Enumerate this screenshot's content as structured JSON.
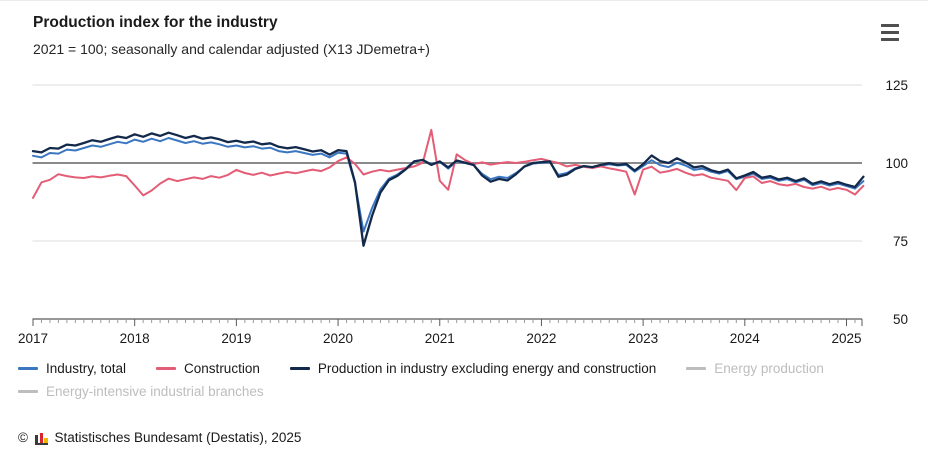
{
  "header": {
    "menu_icon": "hamburger-menu-icon"
  },
  "colors": {
    "industry_total": "#3b77c0",
    "construction": "#e35d76",
    "industry_excl": "#13294b",
    "disabled_legend": "#bdbdbd",
    "reference_line": "#8a8a8a",
    "gridline": "#dedede",
    "axis": "#5a5a5a",
    "minor_tick": "#9a9a9a",
    "text": "#1a1a1a",
    "logo_dark": "#3a3a3a",
    "logo_red": "#d9232e",
    "logo_yellow": "#f2b700"
  },
  "chart_data": {
    "type": "line",
    "title": "Production index for the industry",
    "subtitle": "2021 = 100; seasonally and calendar adjusted (X13 JDemetra+)",
    "x_start": "2017-01",
    "x_end": "2025-03",
    "x_frequency": "monthly",
    "x_tick_labels": [
      "2017",
      "2018",
      "2019",
      "2020",
      "2021",
      "2022",
      "2023",
      "2024",
      "2025"
    ],
    "y_ticks": [
      50,
      75,
      100,
      125
    ],
    "ylim": [
      50,
      127
    ],
    "reference_line": 100,
    "grid": "horizontal",
    "legend_position": "bottom",
    "series": [
      {
        "name": "Industry, total",
        "color": "#3b77c0",
        "disabled": false,
        "values": [
          102.3,
          101.8,
          103.2,
          103.0,
          104.3,
          104.0,
          104.8,
          105.6,
          105.2,
          106.0,
          106.8,
          106.3,
          107.5,
          106.8,
          107.8,
          107.0,
          108.0,
          107.2,
          106.4,
          107.0,
          106.2,
          106.6,
          106.0,
          105.2,
          105.6,
          105.0,
          105.4,
          104.6,
          104.9,
          103.8,
          103.4,
          103.8,
          103.2,
          102.6,
          103.0,
          101.8,
          103.3,
          103.0,
          93.5,
          78.0,
          85.5,
          91.5,
          95.0,
          96.3,
          98.3,
          100.6,
          100.9,
          99.6,
          100.4,
          98.2,
          100.6,
          100.0,
          99.3,
          96.5,
          94.8,
          95.6,
          95.2,
          96.8,
          98.8,
          99.8,
          100.1,
          100.3,
          96.2,
          96.8,
          98.3,
          99.0,
          98.6,
          99.2,
          99.6,
          99.2,
          99.4,
          97.2,
          99.0,
          100.9,
          99.3,
          98.7,
          100.1,
          99.2,
          97.8,
          98.2,
          97.2,
          96.6,
          97.4,
          94.8,
          95.6,
          96.6,
          94.9,
          95.3,
          94.3,
          94.8,
          93.8,
          94.6,
          92.9,
          93.6,
          92.8,
          93.4,
          92.6,
          91.8,
          94.2
        ]
      },
      {
        "name": "Construction",
        "color": "#e35d76",
        "disabled": false,
        "values": [
          88.8,
          93.8,
          94.6,
          96.4,
          95.8,
          95.4,
          95.2,
          95.7,
          95.4,
          95.9,
          96.3,
          95.8,
          92.8,
          89.6,
          91.2,
          93.4,
          95.0,
          94.2,
          94.8,
          95.4,
          94.9,
          95.8,
          95.3,
          96.2,
          97.8,
          96.8,
          96.2,
          96.9,
          96.0,
          96.6,
          97.1,
          96.7,
          97.3,
          97.9,
          97.4,
          98.6,
          100.6,
          101.8,
          99.7,
          96.3,
          97.2,
          97.8,
          97.3,
          97.9,
          98.4,
          98.9,
          100.1,
          110.6,
          94.3,
          91.4,
          102.8,
          100.9,
          99.6,
          100.2,
          99.5,
          99.9,
          100.3,
          100.0,
          100.4,
          100.9,
          101.3,
          100.6,
          100.0,
          98.9,
          99.4,
          98.8,
          98.4,
          98.9,
          98.3,
          97.8,
          97.2,
          89.9,
          97.9,
          98.8,
          96.9,
          97.4,
          98.1,
          96.9,
          96.0,
          96.4,
          95.3,
          94.8,
          94.3,
          91.3,
          95.2,
          95.7,
          93.6,
          94.2,
          93.2,
          92.8,
          93.3,
          92.3,
          91.8,
          92.4,
          91.4,
          92.0,
          91.4,
          89.9,
          92.7
        ]
      },
      {
        "name": "Production in industry excluding energy and construction",
        "color": "#13294b",
        "disabled": false,
        "values": [
          103.8,
          103.4,
          104.8,
          104.6,
          105.9,
          105.6,
          106.4,
          107.3,
          106.8,
          107.7,
          108.5,
          108.0,
          109.2,
          108.4,
          109.5,
          108.7,
          109.7,
          108.9,
          108.0,
          108.7,
          107.8,
          108.2,
          107.6,
          106.7,
          107.1,
          106.5,
          106.9,
          106.0,
          106.3,
          105.2,
          104.7,
          105.1,
          104.4,
          103.7,
          104.1,
          102.7,
          104.1,
          103.8,
          93.8,
          73.5,
          83.0,
          90.5,
          94.5,
          95.9,
          98.0,
          100.5,
          101.0,
          99.4,
          100.5,
          98.6,
          100.8,
          100.1,
          99.4,
          96.0,
          94.0,
          94.9,
          94.4,
          96.4,
          98.9,
          100.0,
          100.3,
          100.5,
          95.6,
          96.3,
          98.1,
          99.0,
          98.7,
          99.4,
          99.9,
          99.4,
          99.7,
          97.6,
          99.6,
          102.4,
          100.6,
          100.0,
          101.5,
          100.2,
          98.6,
          99.0,
          97.7,
          97.0,
          97.9,
          95.1,
          96.0,
          97.1,
          95.3,
          95.8,
          94.7,
          95.3,
          94.2,
          95.1,
          93.3,
          94.1,
          93.2,
          93.9,
          93.0,
          92.3,
          95.6
        ]
      },
      {
        "name": "Energy production",
        "color": "#bdbdbd",
        "disabled": true,
        "values": []
      },
      {
        "name": "Energy-intensive industrial branches",
        "color": "#bdbdbd",
        "disabled": true,
        "values": []
      }
    ]
  },
  "footer": {
    "copyright": "©",
    "source": "Statistisches Bundesamt (Destatis), 2025"
  }
}
